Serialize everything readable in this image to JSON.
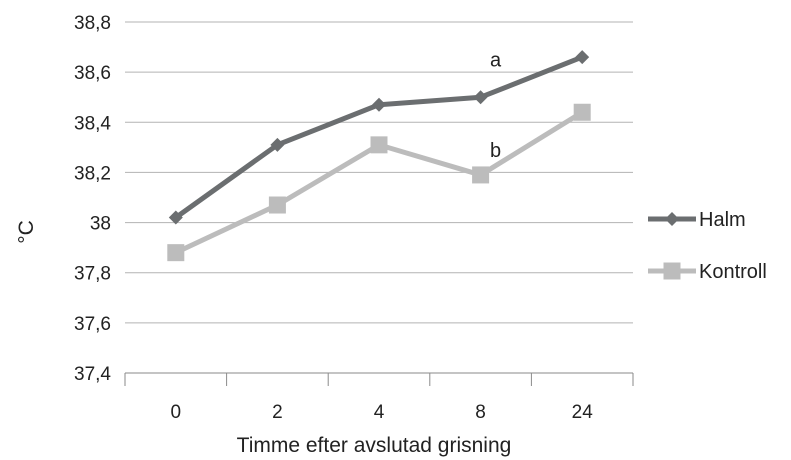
{
  "chart_data": {
    "type": "line",
    "categories": [
      "0",
      "2",
      "4",
      "8",
      "24"
    ],
    "series": [
      {
        "name": "Halm",
        "values": [
          38.02,
          38.31,
          38.47,
          38.5,
          38.66
        ],
        "color": "#6b6e70",
        "marker": "diamond"
      },
      {
        "name": "Kontroll",
        "values": [
          37.88,
          38.07,
          38.31,
          38.19,
          38.44
        ],
        "color": "#bcbcbc",
        "marker": "square"
      }
    ],
    "xlabel": "Timme efter avslutad grisning",
    "ylabel": "°C",
    "ylim": [
      37.4,
      38.8
    ],
    "yticks": [
      "37,4",
      "37,6",
      "37,8",
      "38",
      "38,2",
      "38,4",
      "38,6",
      "38,8"
    ],
    "grid": true,
    "legend_position": "right",
    "annotations": [
      {
        "text": "a",
        "category": "8",
        "y": 38.65
      },
      {
        "text": "b",
        "category": "8",
        "y": 38.29
      }
    ]
  }
}
